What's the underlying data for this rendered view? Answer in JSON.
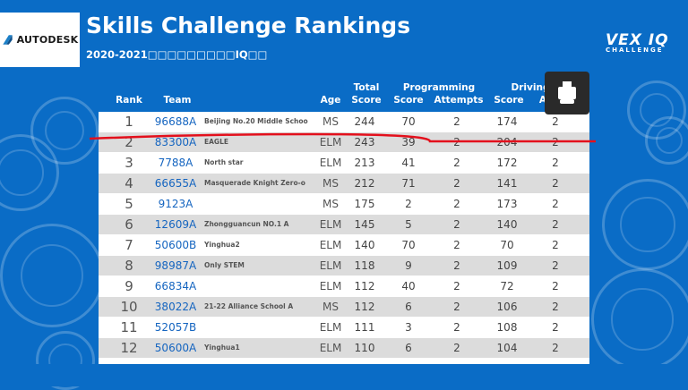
{
  "brand": {
    "logo_text": "AUTODESK"
  },
  "header": {
    "title": "Skills Challenge Rankings",
    "subtitle": "2020-2021□□□□□□□□□IQ□□",
    "vex_mark": "VEX IQ",
    "vex_sub": "CHALLENGE"
  },
  "columns": {
    "rank": "Rank",
    "team": "Team",
    "age": "Age",
    "total_top": "Total",
    "total_bottom": "Score",
    "programming": "Programming",
    "p_score": "Score",
    "p_attempts": "Attempts",
    "driving": "Driving",
    "d_score": "Score",
    "d_attempts": "Attem"
  },
  "rows": [
    {
      "rank": "1",
      "team": "96688A",
      "name": "Beijing No.20 Middle Schoo",
      "age": "MS",
      "total": "244",
      "pscore": "70",
      "patt": "2",
      "dscore": "174",
      "datt": "2"
    },
    {
      "rank": "2",
      "team": "83300A",
      "name": "EAGLE",
      "age": "ELM",
      "total": "243",
      "pscore": "39",
      "patt": "2",
      "dscore": "204",
      "datt": "2"
    },
    {
      "rank": "3",
      "team": "7788A",
      "name": "North star",
      "age": "ELM",
      "total": "213",
      "pscore": "41",
      "patt": "2",
      "dscore": "172",
      "datt": "2"
    },
    {
      "rank": "4",
      "team": "66655A",
      "name": "Masquerade Knight Zero-o",
      "age": "MS",
      "total": "212",
      "pscore": "71",
      "patt": "2",
      "dscore": "141",
      "datt": "2"
    },
    {
      "rank": "5",
      "team": "9123A",
      "name": "",
      "age": "MS",
      "total": "175",
      "pscore": "2",
      "patt": "2",
      "dscore": "173",
      "datt": "2"
    },
    {
      "rank": "6",
      "team": "12609A",
      "name": "Zhongguancun NO.1 A",
      "age": "ELM",
      "total": "145",
      "pscore": "5",
      "patt": "2",
      "dscore": "140",
      "datt": "2"
    },
    {
      "rank": "7",
      "team": "50600B",
      "name": "Yinghua2",
      "age": "ELM",
      "total": "140",
      "pscore": "70",
      "patt": "2",
      "dscore": "70",
      "datt": "2"
    },
    {
      "rank": "8",
      "team": "98987A",
      "name": "Only STEM",
      "age": "ELM",
      "total": "118",
      "pscore": "9",
      "patt": "2",
      "dscore": "109",
      "datt": "2"
    },
    {
      "rank": "9",
      "team": "66834A",
      "name": "",
      "age": "ELM",
      "total": "112",
      "pscore": "40",
      "patt": "2",
      "dscore": "72",
      "datt": "2"
    },
    {
      "rank": "10",
      "team": "38022A",
      "name": "21-22 Alliance School A",
      "age": "MS",
      "total": "112",
      "pscore": "6",
      "patt": "2",
      "dscore": "106",
      "datt": "2"
    },
    {
      "rank": "11",
      "team": "52057B",
      "name": "",
      "age": "ELM",
      "total": "111",
      "pscore": "3",
      "patt": "2",
      "dscore": "108",
      "datt": "2"
    },
    {
      "rank": "12",
      "team": "50600A",
      "name": "Yinghua1",
      "age": "ELM",
      "total": "110",
      "pscore": "6",
      "patt": "2",
      "dscore": "104",
      "datt": "2"
    }
  ],
  "colors": {
    "background": "#0a6cc6",
    "link": "#1565c0",
    "annotation": "#e3101c",
    "alt_row": "#dcdcdc"
  },
  "icons": {
    "robot_button": "robot-icon",
    "logo": "autodesk-logo-icon"
  }
}
